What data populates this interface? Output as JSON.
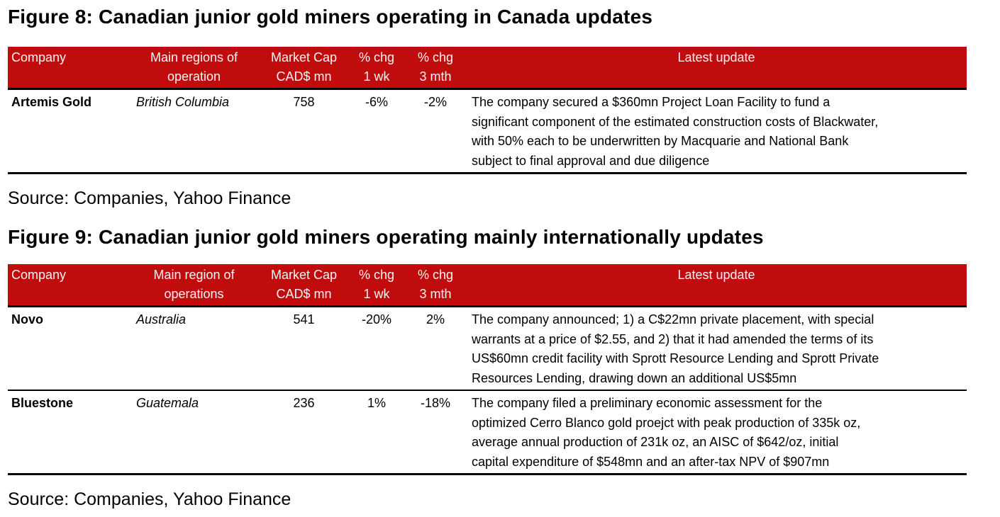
{
  "accent_color": "#C00C0C",
  "figure8": {
    "title": "Figure 8: Canadian junior gold miners operating in Canada updates",
    "source": "Source: Companies, Yahoo Finance",
    "table": {
      "headers": {
        "company": "Company",
        "region": [
          "Main regions of",
          "operation"
        ],
        "market_cap": [
          "Market Cap",
          "CAD$ mn"
        ],
        "chg_1wk": [
          "% chg",
          "1 wk"
        ],
        "chg_3mth": [
          "% chg",
          "3 mth"
        ],
        "latest_update": "Latest update"
      },
      "rows": [
        {
          "company": "Artemis Gold",
          "region": "British Columbia",
          "market_cap": "758",
          "chg_1wk": "-6%",
          "chg_3mth": "-2%",
          "latest_update": [
            "The company secured a $360mn Project Loan Facility to fund a",
            "significant component of the estimated construction costs of Blackwater,",
            "with 50% each to be underwritten by Macquarie and National Bank",
            "subject to final approval and due diligence"
          ]
        }
      ]
    }
  },
  "figure9": {
    "title": "Figure 9: Canadian junior gold miners operating mainly internationally updates",
    "source": "Source: Companies, Yahoo Finance",
    "table": {
      "headers": {
        "company": "Company",
        "region": [
          "Main region of",
          "operations"
        ],
        "market_cap": [
          "Market Cap",
          "CAD$ mn"
        ],
        "chg_1wk": [
          "% chg",
          "1 wk"
        ],
        "chg_3mth": [
          "% chg",
          "3 mth"
        ],
        "latest_update": "Latest update"
      },
      "rows": [
        {
          "company": "Novo",
          "region": "Australia",
          "market_cap": "541",
          "chg_1wk": "-20%",
          "chg_3mth": "2%",
          "latest_update": [
            "The company announced; 1) a C$22mn private placement, with special",
            "warrants at a price of $2.55, and 2) that it had amended the terms of its",
            "US$60mn credit facility with Sprott Resource Lending and Sprott Private",
            "Resources Lending, drawing down an additional US$5mn"
          ]
        },
        {
          "company": "Bluestone",
          "region": "Guatemala",
          "market_cap": "236",
          "chg_1wk": "1%",
          "chg_3mth": "-18%",
          "latest_update": [
            "The company filed a preliminary economic assessment for the",
            "optimized Cerro Blanco gold proejct with peak production of 335k oz,",
            "average annual production of 231k oz, an AISC of $642/oz, initial",
            "capital expenditure of $548mn and an after-tax NPV of $907mn"
          ]
        }
      ]
    }
  }
}
